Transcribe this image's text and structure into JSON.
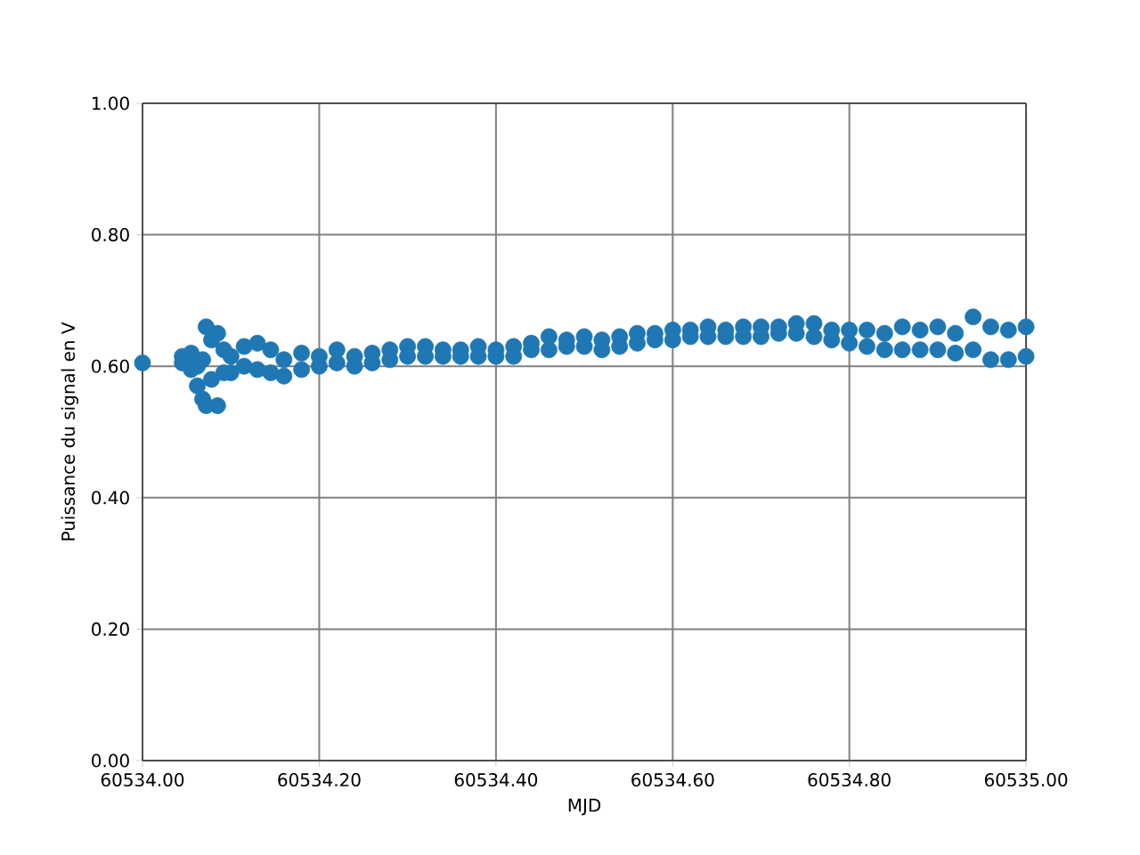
{
  "chart_data": {
    "type": "scatter",
    "xlabel": "MJD",
    "ylabel": "Puissance du signal en V",
    "x": [
      60534.0,
      60534.045,
      60534.045,
      60534.055,
      60534.055,
      60534.062,
      60534.062,
      60534.068,
      60534.068,
      60534.072,
      60534.072,
      60534.078,
      60534.078,
      60534.085,
      60534.085,
      60534.092,
      60534.092,
      60534.1,
      60534.1,
      60534.115,
      60534.115,
      60534.13,
      60534.13,
      60534.145,
      60534.145,
      60534.16,
      60534.16,
      60534.18,
      60534.18,
      60534.2,
      60534.2,
      60534.22,
      60534.22,
      60534.24,
      60534.24,
      60534.26,
      60534.26,
      60534.28,
      60534.28,
      60534.3,
      60534.3,
      60534.32,
      60534.32,
      60534.34,
      60534.34,
      60534.36,
      60534.36,
      60534.38,
      60534.38,
      60534.4,
      60534.4,
      60534.42,
      60534.42,
      60534.44,
      60534.44,
      60534.46,
      60534.46,
      60534.48,
      60534.48,
      60534.5,
      60534.5,
      60534.52,
      60534.52,
      60534.54,
      60534.54,
      60534.56,
      60534.56,
      60534.58,
      60534.58,
      60534.6,
      60534.6,
      60534.62,
      60534.62,
      60534.64,
      60534.64,
      60534.66,
      60534.66,
      60534.68,
      60534.68,
      60534.7,
      60534.7,
      60534.72,
      60534.72,
      60534.74,
      60534.74,
      60534.76,
      60534.76,
      60534.78,
      60534.78,
      60534.8,
      60534.8,
      60534.82,
      60534.82,
      60534.84,
      60534.84,
      60534.86,
      60534.86,
      60534.88,
      60534.88,
      60534.9,
      60534.9,
      60534.92,
      60534.92,
      60534.94,
      60534.94,
      60534.96,
      60534.96,
      60534.98,
      60534.98,
      60535.0,
      60535.0
    ],
    "values": [
      0.605,
      0.615,
      0.605,
      0.62,
      0.595,
      0.6,
      0.57,
      0.61,
      0.55,
      0.66,
      0.54,
      0.64,
      0.58,
      0.65,
      0.54,
      0.625,
      0.59,
      0.615,
      0.59,
      0.63,
      0.6,
      0.635,
      0.595,
      0.625,
      0.59,
      0.61,
      0.585,
      0.62,
      0.595,
      0.615,
      0.6,
      0.625,
      0.605,
      0.615,
      0.6,
      0.62,
      0.605,
      0.625,
      0.61,
      0.63,
      0.615,
      0.63,
      0.615,
      0.625,
      0.615,
      0.625,
      0.615,
      0.63,
      0.615,
      0.625,
      0.615,
      0.63,
      0.615,
      0.635,
      0.625,
      0.645,
      0.625,
      0.64,
      0.63,
      0.645,
      0.63,
      0.64,
      0.625,
      0.645,
      0.63,
      0.65,
      0.635,
      0.65,
      0.64,
      0.655,
      0.64,
      0.655,
      0.645,
      0.66,
      0.645,
      0.655,
      0.645,
      0.66,
      0.645,
      0.66,
      0.645,
      0.66,
      0.65,
      0.665,
      0.65,
      0.665,
      0.645,
      0.655,
      0.64,
      0.655,
      0.635,
      0.655,
      0.63,
      0.65,
      0.625,
      0.66,
      0.625,
      0.655,
      0.625,
      0.66,
      0.625,
      0.65,
      0.62,
      0.675,
      0.625,
      0.66,
      0.61,
      0.655,
      0.61,
      0.66,
      0.615
    ],
    "color": "#1f77b4",
    "marker": "circle",
    "grid": true,
    "xlim": [
      60534.0,
      60535.0
    ],
    "xticks": [
      {
        "value": 60534.0,
        "label": "60534.00"
      },
      {
        "value": 60534.2,
        "label": "60534.20"
      },
      {
        "value": 60534.4,
        "label": "60534.40"
      },
      {
        "value": 60534.6,
        "label": "60534.60"
      },
      {
        "value": 60534.8,
        "label": "60534.80"
      },
      {
        "value": 60535.0,
        "label": "60535.00"
      }
    ],
    "ylim": [
      0,
      1
    ],
    "yticks": [
      {
        "value": 0,
        "label": "0.00"
      },
      {
        "value": 0.2,
        "label": "0.20"
      },
      {
        "value": 0.4,
        "label": "0.40"
      },
      {
        "value": 0.6,
        "label": "0.60"
      },
      {
        "value": 0.8,
        "label": "0.80"
      },
      {
        "value": 1.0,
        "label": "1.00"
      }
    ]
  }
}
